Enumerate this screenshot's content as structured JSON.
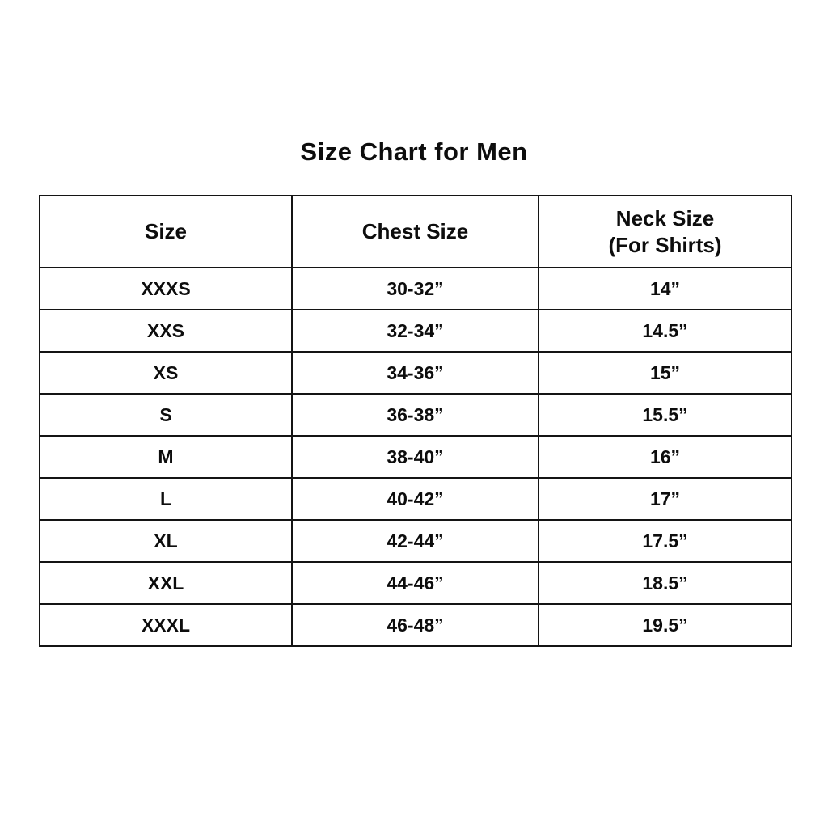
{
  "page": {
    "background_color": "#ffffff",
    "text_color": "#0d0d0d",
    "border_color": "#141414"
  },
  "chart_data": {
    "type": "table",
    "title": "Size Chart for Men",
    "columns": [
      {
        "label": "Size",
        "sublabel": ""
      },
      {
        "label": "Chest Size",
        "sublabel": ""
      },
      {
        "label": "Neck Size",
        "sublabel": "(For Shirts)"
      }
    ],
    "rows": [
      [
        "XXXS",
        "30-32”",
        "14”"
      ],
      [
        "XXS",
        "32-34”",
        "14.5”"
      ],
      [
        "XS",
        "34-36”",
        "15”"
      ],
      [
        "S",
        "36-38”",
        "15.5”"
      ],
      [
        "M",
        "38-40”",
        "16”"
      ],
      [
        "L",
        "40-42”",
        "17”"
      ],
      [
        "XL",
        "42-44”",
        "17.5”"
      ],
      [
        "XXL",
        "44-46”",
        "18.5”"
      ],
      [
        "XXXL",
        "46-48”",
        "19.5”"
      ]
    ]
  }
}
